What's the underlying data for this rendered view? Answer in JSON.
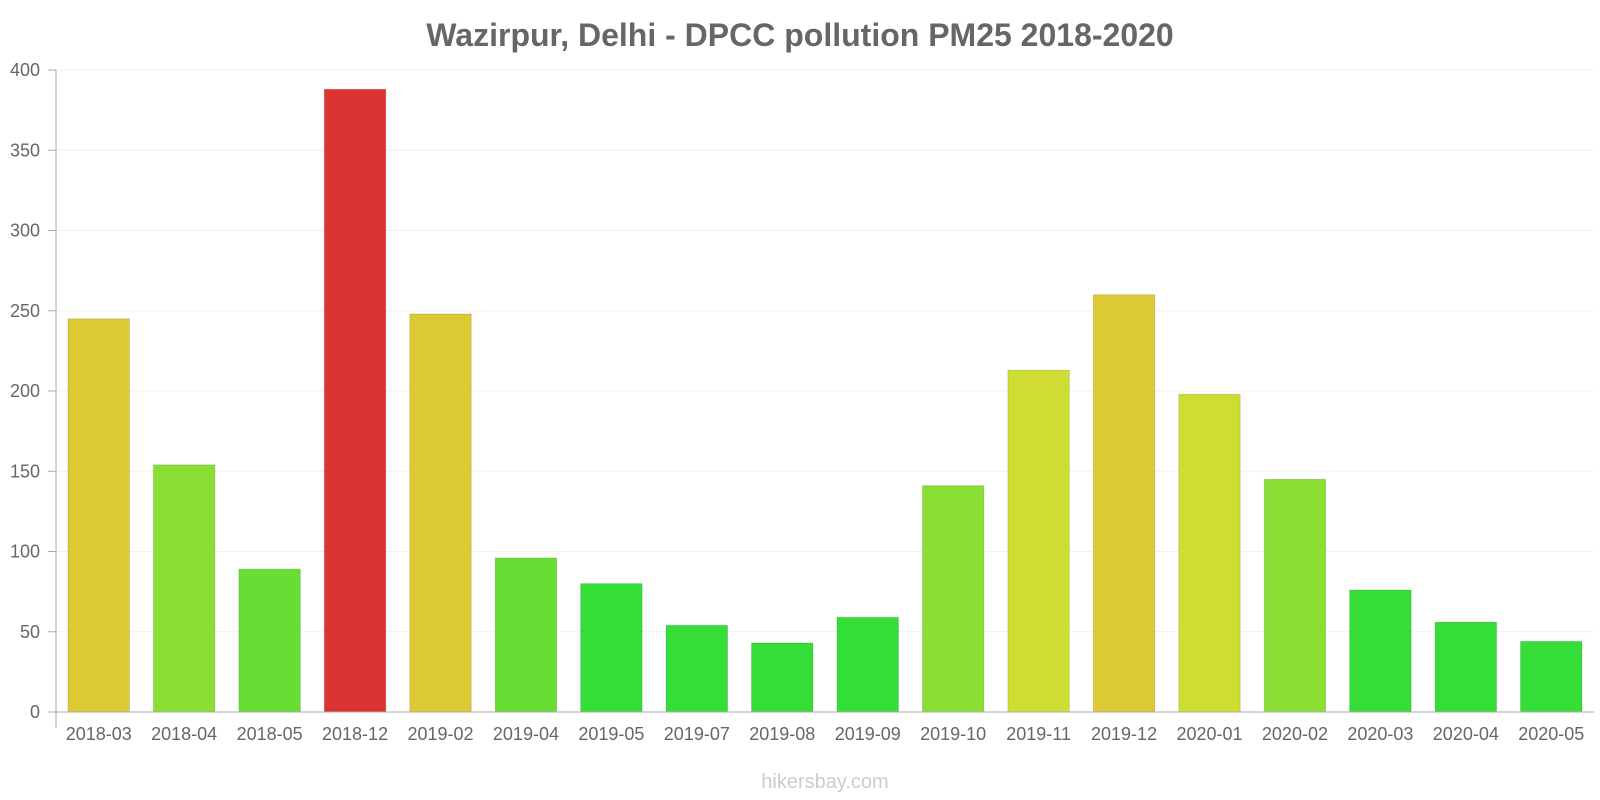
{
  "chart_data": {
    "type": "bar",
    "title": "Wazirpur, Delhi - DPCC pollution PM25 2018-2020",
    "xlabel": "",
    "ylabel": "",
    "ylim": [
      0,
      400
    ],
    "yticks": [
      0,
      50,
      100,
      150,
      200,
      250,
      300,
      350,
      400
    ],
    "categories": [
      "2018-03",
      "2018-04",
      "2018-05",
      "2018-12",
      "2019-02",
      "2019-04",
      "2019-05",
      "2019-07",
      "2019-08",
      "2019-09",
      "2019-10",
      "2019-11",
      "2019-12",
      "2020-01",
      "2020-02",
      "2020-03",
      "2020-04",
      "2020-05"
    ],
    "values": [
      245,
      154,
      89,
      388,
      248,
      96,
      80,
      54,
      43,
      59,
      141,
      213,
      260,
      198,
      145,
      76,
      56,
      44
    ],
    "colors": [
      "#dcc934",
      "#8ade34",
      "#68de34",
      "#dc3434",
      "#dcc934",
      "#68de34",
      "#35de36",
      "#35de36",
      "#35de36",
      "#35de36",
      "#8ade34",
      "#cfdd33",
      "#dcc934",
      "#cfdd33",
      "#8ade34",
      "#35de36",
      "#35de36",
      "#35de36"
    ],
    "grid": true,
    "legend": "none"
  },
  "watermark": "hikersbay.com"
}
